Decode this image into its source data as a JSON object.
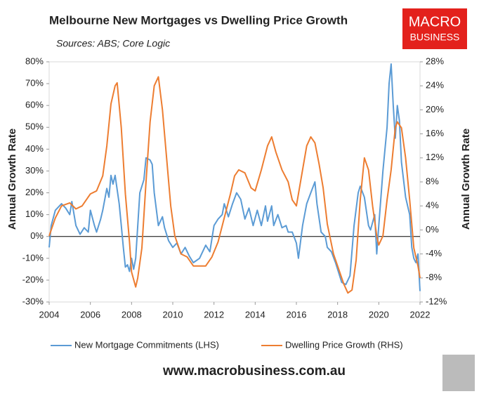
{
  "chart_data": {
    "type": "line",
    "title": "Melbourne New Mortgages vs Dwelling Price Growth",
    "subtitle": "Sources: ABS; Core Logic",
    "ylabel": "Annual Growth Rate",
    "y2label": "Annual Growth Rate",
    "xlim": [
      2004,
      2022
    ],
    "xticks": [
      2004,
      2006,
      2008,
      2010,
      2012,
      2014,
      2016,
      2018,
      2020,
      2022
    ],
    "ylim": [
      -30,
      80
    ],
    "yticks": [
      {
        "value": -30,
        "label": "-30%"
      },
      {
        "value": -20,
        "label": "-20%"
      },
      {
        "value": -10,
        "label": "-10%"
      },
      {
        "value": 0,
        "label": "0%"
      },
      {
        "value": 10,
        "label": "10%"
      },
      {
        "value": 20,
        "label": "20%"
      },
      {
        "value": 30,
        "label": "30%"
      },
      {
        "value": 40,
        "label": "40%"
      },
      {
        "value": 50,
        "label": "50%"
      },
      {
        "value": 60,
        "label": "60%"
      },
      {
        "value": 70,
        "label": "70%"
      },
      {
        "value": 80,
        "label": "80%"
      }
    ],
    "y2lim": [
      -12,
      28
    ],
    "y2ticks": [
      {
        "value": -12,
        "label": "-12%"
      },
      {
        "value": -8,
        "label": "-8%"
      },
      {
        "value": -4,
        "label": "-4%"
      },
      {
        "value": 0,
        "label": "0%"
      },
      {
        "value": 4,
        "label": "4%"
      },
      {
        "value": 8,
        "label": "8%"
      },
      {
        "value": 12,
        "label": "12%"
      },
      {
        "value": 16,
        "label": "16%"
      },
      {
        "value": 20,
        "label": "20%"
      },
      {
        "value": 24,
        "label": "24%"
      },
      {
        "value": 28,
        "label": "28%"
      }
    ],
    "legend": "bottom",
    "series": [
      {
        "name": "New Mortgage Commitments (LHS)",
        "color": "#5b9bd5",
        "axis": "y",
        "x": [
          2004.0,
          2004.1,
          2004.3,
          2004.6,
          2004.8,
          2005.0,
          2005.1,
          2005.3,
          2005.5,
          2005.7,
          2005.9,
          2006.0,
          2006.2,
          2006.3,
          2006.5,
          2006.6,
          2006.8,
          2006.9,
          2007.0,
          2007.1,
          2007.2,
          2007.4,
          2007.5,
          2007.6,
          2007.7,
          2007.8,
          2007.9,
          2008.0,
          2008.1,
          2008.2,
          2008.4,
          2008.6,
          2008.7,
          2008.9,
          2009.0,
          2009.1,
          2009.3,
          2009.5,
          2009.6,
          2009.8,
          2010.0,
          2010.2,
          2010.4,
          2010.6,
          2010.8,
          2011.0,
          2011.3,
          2011.6,
          2011.8,
          2012.0,
          2012.2,
          2012.4,
          2012.5,
          2012.7,
          2012.9,
          2013.1,
          2013.3,
          2013.5,
          2013.7,
          2013.9,
          2014.1,
          2014.3,
          2014.5,
          2014.6,
          2014.8,
          2014.9,
          2015.1,
          2015.3,
          2015.5,
          2015.6,
          2015.8,
          2016.0,
          2016.1,
          2016.3,
          2016.5,
          2016.7,
          2016.9,
          2017.0,
          2017.2,
          2017.4,
          2017.5,
          2017.7,
          2017.9,
          2018.0,
          2018.2,
          2018.4,
          2018.6,
          2018.8,
          2019.0,
          2019.1,
          2019.3,
          2019.5,
          2019.6,
          2019.8,
          2019.9,
          2020.0,
          2020.2,
          2020.4,
          2020.5,
          2020.6,
          2020.7,
          2020.8,
          2020.9,
          2021.0,
          2021.1,
          2021.3,
          2021.5,
          2021.6,
          2021.7,
          2021.8,
          2021.9,
          2022.0
        ],
        "values": [
          -5,
          5,
          12,
          15,
          13,
          10,
          16,
          5,
          1,
          4,
          2,
          12,
          5,
          2,
          8,
          12,
          22,
          18,
          28,
          24,
          28,
          15,
          5,
          -5,
          -14,
          -13,
          -16,
          -10,
          -15,
          -10,
          20,
          26,
          36,
          35,
          33,
          20,
          5,
          9,
          4,
          -2,
          -5,
          -3,
          -8,
          -5,
          -9,
          -12,
          -10,
          -4,
          -7,
          5,
          8,
          10,
          15,
          9,
          15,
          20,
          17,
          8,
          13,
          5,
          12,
          5,
          14,
          7,
          14,
          5,
          10,
          4,
          5,
          2,
          2,
          -3,
          -10,
          5,
          15,
          20,
          25,
          15,
          2,
          0,
          -5,
          -7,
          -12,
          -15,
          -21,
          -22,
          -18,
          5,
          20,
          23,
          18,
          5,
          3,
          10,
          -8,
          5,
          30,
          50,
          70,
          79,
          60,
          45,
          60,
          53,
          34,
          18,
          10,
          -5,
          -10,
          -12,
          -8,
          -25
        ]
      },
      {
        "name": "Dwelling Price Growth (RHS)",
        "color": "#ed7d31",
        "axis": "y2",
        "x": [
          2004.0,
          2004.3,
          2004.6,
          2005.0,
          2005.3,
          2005.6,
          2006.0,
          2006.3,
          2006.6,
          2006.8,
          2007.0,
          2007.2,
          2007.3,
          2007.5,
          2007.7,
          2007.9,
          2008.0,
          2008.2,
          2008.3,
          2008.5,
          2008.7,
          2008.9,
          2009.1,
          2009.3,
          2009.5,
          2009.7,
          2009.9,
          2010.1,
          2010.4,
          2010.7,
          2011.0,
          2011.3,
          2011.6,
          2011.9,
          2012.2,
          2012.5,
          2012.8,
          2013.0,
          2013.2,
          2013.5,
          2013.8,
          2014.0,
          2014.3,
          2014.6,
          2014.8,
          2015.0,
          2015.3,
          2015.6,
          2015.8,
          2016.0,
          2016.3,
          2016.5,
          2016.7,
          2016.9,
          2017.1,
          2017.3,
          2017.5,
          2017.8,
          2018.0,
          2018.3,
          2018.5,
          2018.7,
          2018.9,
          2019.1,
          2019.3,
          2019.5,
          2019.7,
          2019.9,
          2020.0,
          2020.2,
          2020.4,
          2020.6,
          2020.8,
          2020.9,
          2021.1,
          2021.3,
          2021.5,
          2021.7,
          2021.9,
          2022.0
        ],
        "values": [
          -1,
          2,
          4,
          4.5,
          3.5,
          4,
          6,
          6.5,
          9,
          14,
          21,
          24,
          24.5,
          17,
          6,
          -2,
          -7,
          -9.5,
          -8,
          -3,
          8,
          18,
          24,
          25.5,
          20,
          12,
          4,
          -1,
          -4,
          -4.5,
          -6,
          -6,
          -6,
          -4.5,
          -2,
          2,
          6,
          9,
          10,
          9.5,
          7,
          6.5,
          10,
          14,
          15.5,
          13,
          10,
          8,
          5,
          4,
          10,
          14,
          15.5,
          14.5,
          11,
          7,
          1,
          -4,
          -6,
          -9,
          -10.5,
          -10,
          -5,
          5,
          12,
          10,
          4,
          -1,
          -2.5,
          -1,
          5,
          10,
          17,
          18,
          17,
          12,
          5,
          -3,
          -6,
          -8
        ]
      }
    ]
  },
  "logo": {
    "top": "MACRO",
    "bottom": "BUSINESS"
  },
  "footer": "www.macrobusiness.com.au"
}
